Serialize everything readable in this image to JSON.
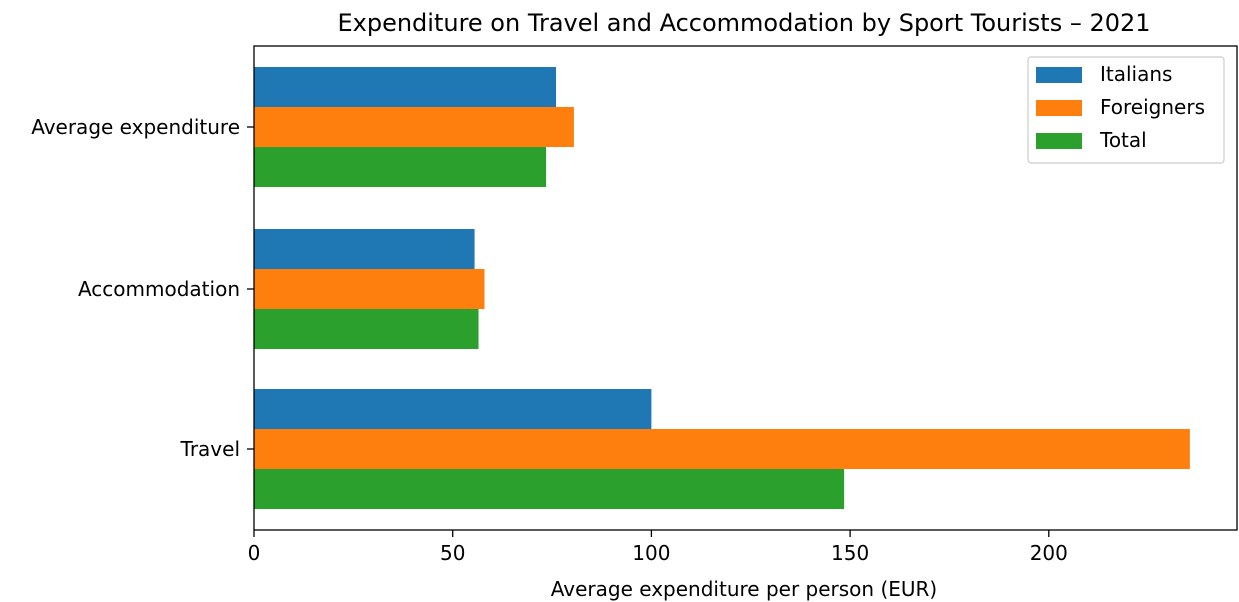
{
  "chart_data": {
    "type": "bar",
    "orientation": "horizontal",
    "title": "Expenditure on Travel and Accommodation by Sport Tourists – 2021",
    "xlabel": "Average expenditure per person (EUR)",
    "ylabel": "",
    "categories": [
      "Travel",
      "Accommodation",
      "Average expenditure"
    ],
    "series": [
      {
        "name": "Italians",
        "color": "#1f77b4",
        "values": [
          100,
          55.5,
          76
        ]
      },
      {
        "name": "Foreigners",
        "color": "#ff7f0e",
        "values": [
          235.5,
          58,
          80.5
        ]
      },
      {
        "name": "Total",
        "color": "#2ca02c",
        "values": [
          148.5,
          56.5,
          73.5
        ]
      }
    ],
    "xlim": [
      0,
      240
    ],
    "xticks": [
      0,
      50,
      100,
      150,
      200
    ],
    "grid": false,
    "legend": {
      "placement": "top-right"
    }
  }
}
